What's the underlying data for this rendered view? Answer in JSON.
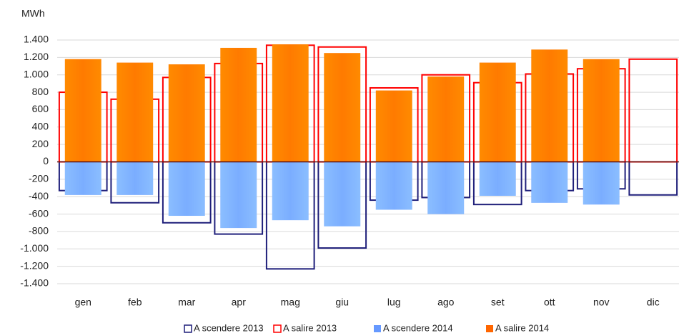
{
  "chart_data": {
    "type": "bar",
    "y_label": "MWh",
    "categories": [
      "gen",
      "feb",
      "mar",
      "apr",
      "mag",
      "giu",
      "lug",
      "ago",
      "set",
      "ott",
      "nov",
      "dic"
    ],
    "series": [
      {
        "name": "A scendere 2013",
        "color": "#1f1f7a",
        "style": "outline",
        "values": [
          -330,
          -470,
          -700,
          -830,
          -1230,
          -990,
          -440,
          -410,
          -490,
          -330,
          -310,
          -380
        ]
      },
      {
        "name": "A salire 2013",
        "color": "#ff0000",
        "style": "outline",
        "values": [
          800,
          720,
          970,
          1130,
          1340,
          1320,
          850,
          1000,
          910,
          1010,
          1070,
          1180
        ]
      },
      {
        "name": "A scendere 2014",
        "color": "#6699ff",
        "style": "gradient",
        "values": [
          -380,
          -380,
          -620,
          -760,
          -670,
          -740,
          -550,
          -600,
          -390,
          -470,
          -490,
          null
        ]
      },
      {
        "name": "A salire 2014",
        "color": "#ff6600",
        "style": "gradient",
        "values": [
          1180,
          1140,
          1120,
          1310,
          1350,
          1250,
          820,
          980,
          1140,
          1290,
          1180,
          null
        ]
      }
    ],
    "ylim": [
      -1400,
      1400
    ],
    "yticks": [
      {
        "value": -1400,
        "label": "-1.400"
      },
      {
        "value": -1200,
        "label": "-1.200"
      },
      {
        "value": -1000,
        "label": "-1.000"
      },
      -800,
      -600,
      -400,
      -200,
      0,
      200,
      400,
      600,
      800,
      {
        "value": 1000,
        "label": "1.000"
      },
      {
        "value": 1200,
        "label": "1.200"
      },
      {
        "value": 1400,
        "label": "1.400"
      }
    ],
    "grid": true,
    "legend": "bottom"
  }
}
